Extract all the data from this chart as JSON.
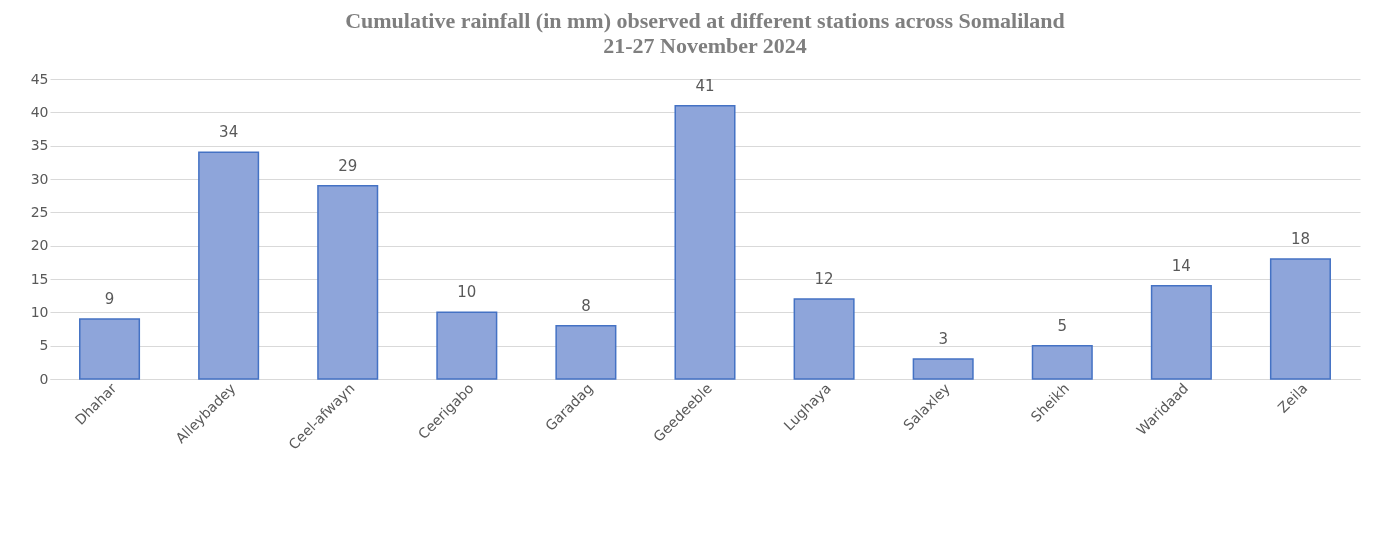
{
  "chart_data": {
    "type": "bar",
    "title": "Cumulative rainfall (in mm) observed at different stations across Somaliland",
    "subtitle": "21-27 November 2024",
    "categories": [
      "Dhahar",
      "Alleybadey",
      "Ceel-afwayn",
      "Ceerigabo",
      "Garadag",
      "Geedeeble",
      "Lughaya",
      "Salaxley",
      "Sheikh",
      "Waridaad",
      "Zeila"
    ],
    "values": [
      9,
      34,
      29,
      10,
      8,
      41,
      12,
      3,
      5,
      14,
      18
    ],
    "color": "#8ea5da",
    "data_labels": true,
    "ylim": [
      0,
      45
    ],
    "yticks": [
      0,
      5,
      10,
      15,
      20,
      25,
      30,
      35,
      40,
      45
    ],
    "grid": "y"
  }
}
